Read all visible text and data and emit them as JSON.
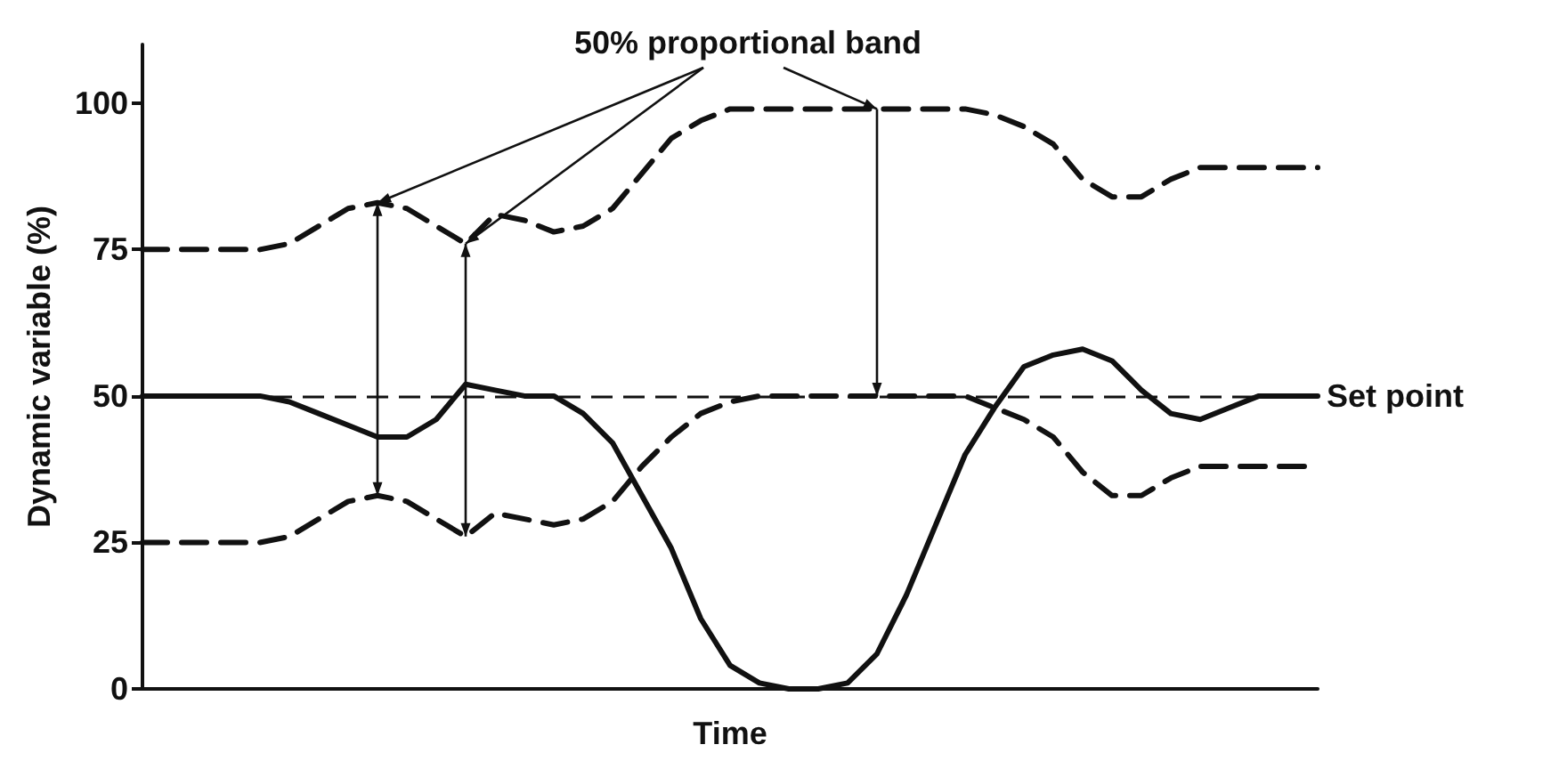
{
  "chart_data": {
    "type": "line",
    "ylabel": "Dynamic variable (%)",
    "xlabel": "Time",
    "categories": [
      null,
      null,
      null,
      null,
      null,
      null,
      null,
      null,
      null,
      null,
      null,
      null,
      null,
      null,
      null,
      null,
      null,
      null,
      null,
      null,
      null,
      null,
      null,
      null,
      null,
      null,
      null,
      null,
      null,
      null,
      null,
      null,
      null,
      null,
      null,
      null,
      null,
      null,
      null,
      null,
      null
    ],
    "series": [
      {
        "color": "#111111",
        "line_style": "solid",
        "values": [
          50,
          50,
          50,
          50,
          50,
          49,
          47,
          45,
          43,
          43,
          46,
          52,
          51,
          50,
          50,
          47,
          42,
          33,
          24,
          12,
          4,
          1,
          0,
          0,
          1,
          6,
          16,
          28,
          40,
          48,
          55,
          57,
          58,
          56,
          51,
          47,
          46,
          48,
          50,
          50,
          50
        ]
      },
      {
        "color": "#111111",
        "line_style": "dashed",
        "values": [
          75,
          75,
          75,
          75,
          75,
          76,
          79,
          82,
          83,
          82,
          79,
          76,
          81,
          80,
          78,
          79,
          82,
          88,
          94,
          97,
          99,
          99,
          99,
          99,
          99,
          99,
          99,
          99,
          99,
          98,
          96,
          93,
          87,
          84,
          84,
          87,
          89,
          89,
          89,
          89,
          89
        ]
      },
      {
        "color": "#111111",
        "line_style": "dashed",
        "values": [
          25,
          25,
          25,
          25,
          25,
          26,
          29,
          32,
          33,
          32,
          29,
          26,
          30,
          29,
          28,
          29,
          32,
          38,
          43,
          47,
          49,
          50,
          50,
          50,
          50,
          50,
          50,
          50,
          50,
          48,
          46,
          43,
          37,
          33,
          33,
          36,
          38,
          38,
          38,
          38,
          38
        ]
      }
    ],
    "ylim": [
      0,
      110
    ],
    "yticks": [
      0,
      25,
      50,
      75,
      100
    ],
    "grid": false,
    "marker": "none",
    "tick_labels": "y",
    "ref_lines": [
      {
        "axis": "y",
        "value": 50,
        "label": "Set point",
        "color": "#111111",
        "line_style": "dashed"
      }
    ],
    "annotations": [
      "50% proportional band"
    ]
  }
}
